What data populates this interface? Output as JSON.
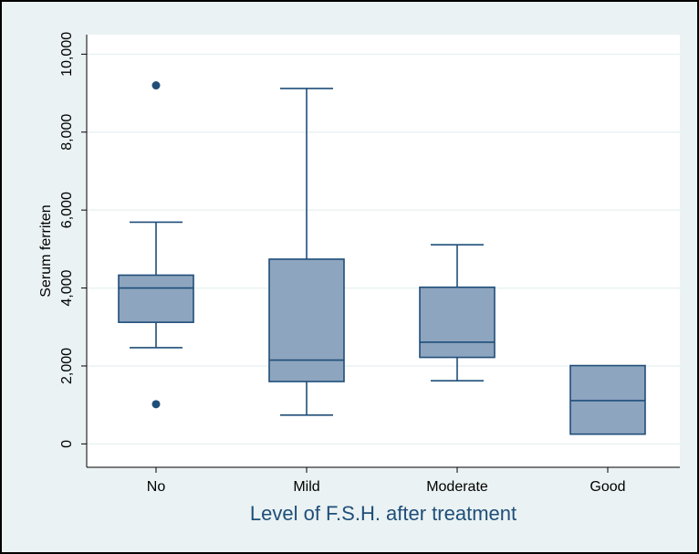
{
  "colors": {
    "background": "#eaf2f3",
    "plot_background": "#ffffff",
    "gridline": "#eaf2f3",
    "box_fill": "#8ea5bf",
    "box_stroke": "#1f4e79",
    "outlier": "#1f4e79",
    "axis": "#000000",
    "title_text": "#1f4e79",
    "outer_border": "#000000"
  },
  "chart_data": {
    "type": "box",
    "title": "",
    "xlabel": "Level of F.S.H. after treatment",
    "ylabel": "Serum ferriten",
    "ylim": [
      -600,
      10500
    ],
    "y_ticks": [
      0,
      2000,
      4000,
      6000,
      8000,
      10000
    ],
    "y_tick_labels": [
      "0",
      "2,000",
      "4,000",
      "6,000",
      "8,000",
      "10,000"
    ],
    "grid": true,
    "categories": [
      "No",
      "Mild",
      "Moderate",
      "Good"
    ],
    "boxes": [
      {
        "category": "No",
        "whisker_low": 2470,
        "q1": 3120,
        "median": 4000,
        "q3": 4330,
        "whisker_high": 5690,
        "outliers": [
          9200,
          1020
        ]
      },
      {
        "category": "Mild",
        "whisker_low": 740,
        "q1": 1600,
        "median": 2150,
        "q3": 4740,
        "whisker_high": 9120,
        "outliers": []
      },
      {
        "category": "Moderate",
        "whisker_low": 1620,
        "q1": 2220,
        "median": 2610,
        "q3": 4020,
        "whisker_high": 5110,
        "outliers": []
      },
      {
        "category": "Good",
        "whisker_low": 250,
        "q1": 250,
        "median": 1110,
        "q3": 2010,
        "whisker_high": 2010,
        "outliers": []
      }
    ]
  }
}
